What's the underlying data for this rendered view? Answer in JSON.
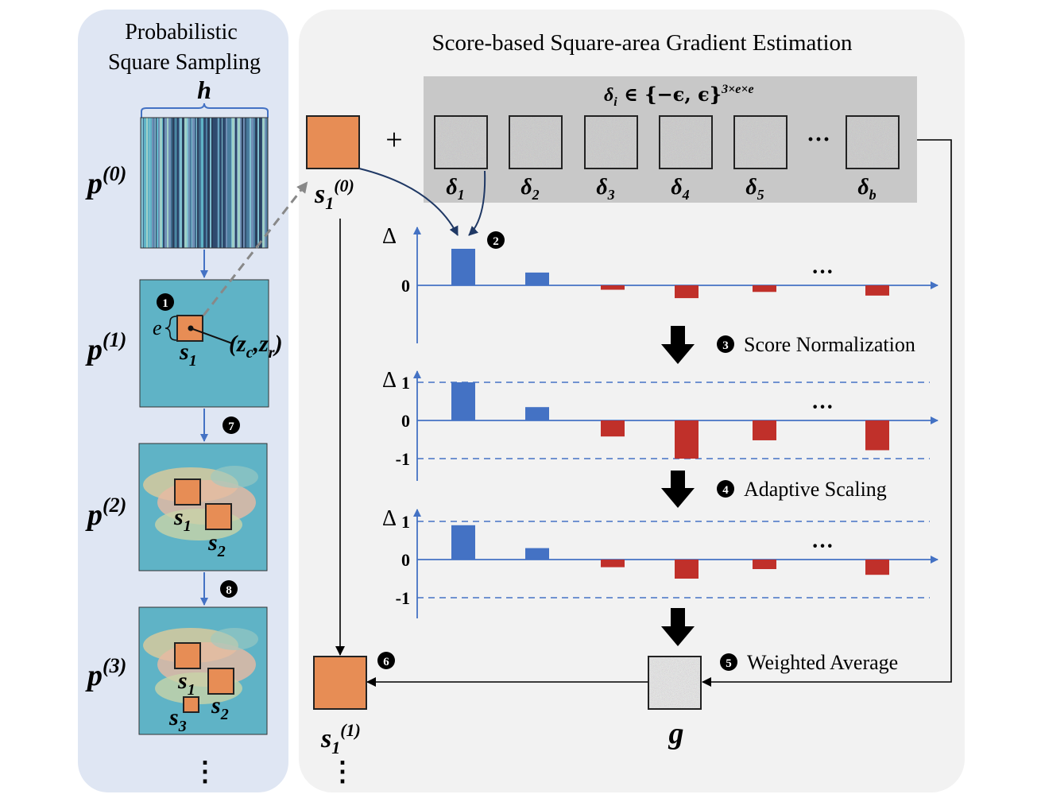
{
  "left_panel": {
    "title_line1": "Probabilistic",
    "title_line2": "Square Sampling",
    "h_label": "h",
    "rows": [
      {
        "base": "p",
        "sup": "(0)"
      },
      {
        "base": "p",
        "sup": "(1)"
      },
      {
        "base": "p",
        "sup": "(2)"
      },
      {
        "base": "p",
        "sup": "(3)"
      }
    ],
    "e_label": "e",
    "coord_open": "(",
    "coord_zc": "z",
    "coord_zc_sub": "c",
    "coord_comma": ",",
    "coord_zr": "z",
    "coord_zr_sub": "r",
    "coord_close": ")",
    "square_labels": [
      {
        "base": "s",
        "sub": "1"
      },
      {
        "base": "s",
        "sub": "2"
      },
      {
        "base": "s",
        "sub": "3"
      }
    ],
    "ellipsis": "⋮",
    "step_markers": [
      "1",
      "7",
      "8"
    ]
  },
  "right_panel": {
    "title": "Score-based Square-area Gradient Estimation",
    "delta_set_label": "δi ∈ {−ϵ, ϵ}3×e×e",
    "delta_set_base": "δ",
    "delta_set_sub": "i",
    "delta_set_mid": " ∈ {−ϵ, ϵ}",
    "delta_set_sup": "3×e×e",
    "plus": "+",
    "hdots": "···",
    "deltas": [
      {
        "base": "δ",
        "sub": "1"
      },
      {
        "base": "δ",
        "sub": "2"
      },
      {
        "base": "δ",
        "sub": "3"
      },
      {
        "base": "δ",
        "sub": "4"
      },
      {
        "base": "δ",
        "sub": "5"
      },
      {
        "base": "δ",
        "sub": "b"
      }
    ],
    "s_initial": {
      "base": "s",
      "sub": "1",
      "sup": "(0)"
    },
    "s_updated": {
      "base": "s",
      "sub": "1",
      "sup": "(1)"
    },
    "g_label": "g",
    "ellipsis": "⋮",
    "delta_axis_label": "Δ",
    "steps": [
      {
        "num": "2",
        "label": ""
      },
      {
        "num": "3",
        "label": "Score Normalization"
      },
      {
        "num": "4",
        "label": "Adaptive Scaling"
      },
      {
        "num": "5",
        "label": "Weighted Average"
      },
      {
        "num": "6",
        "label": ""
      }
    ]
  },
  "chart_data": [
    {
      "type": "bar",
      "title": "",
      "ylabel": "Δ",
      "tick_labels": [
        "0"
      ],
      "values": [
        1.0,
        0.35,
        -0.12,
        -0.35,
        -0.18,
        -0.28
      ],
      "ellipsis_after": 5
    },
    {
      "type": "bar",
      "title": "Score Normalization",
      "ylabel": "Δ",
      "tick_labels": [
        "1",
        "0",
        "-1"
      ],
      "ylim": [
        -1,
        1
      ],
      "values": [
        1.0,
        0.35,
        -0.42,
        -1.0,
        -0.52,
        -0.78
      ],
      "ellipsis_after": 5
    },
    {
      "type": "bar",
      "title": "Adaptive Scaling",
      "ylabel": "Δ",
      "tick_labels": [
        "1",
        "0",
        "-1"
      ],
      "ylim": [
        -1,
        1
      ],
      "values": [
        0.9,
        0.3,
        -0.2,
        -0.5,
        -0.25,
        -0.4
      ],
      "ellipsis_after": 5
    }
  ],
  "colors": {
    "left_bg": "#dfe6f3",
    "right_bg": "#f2f2f2",
    "gray_strip": "#c8c8c8",
    "square_orange": "#e78d55",
    "bar_blue": "#4472c4",
    "bar_red": "#c0302a",
    "axis_blue": "#4472c4",
    "teal": "#5fb3c6",
    "dark_navy": "#2f4a6e"
  }
}
